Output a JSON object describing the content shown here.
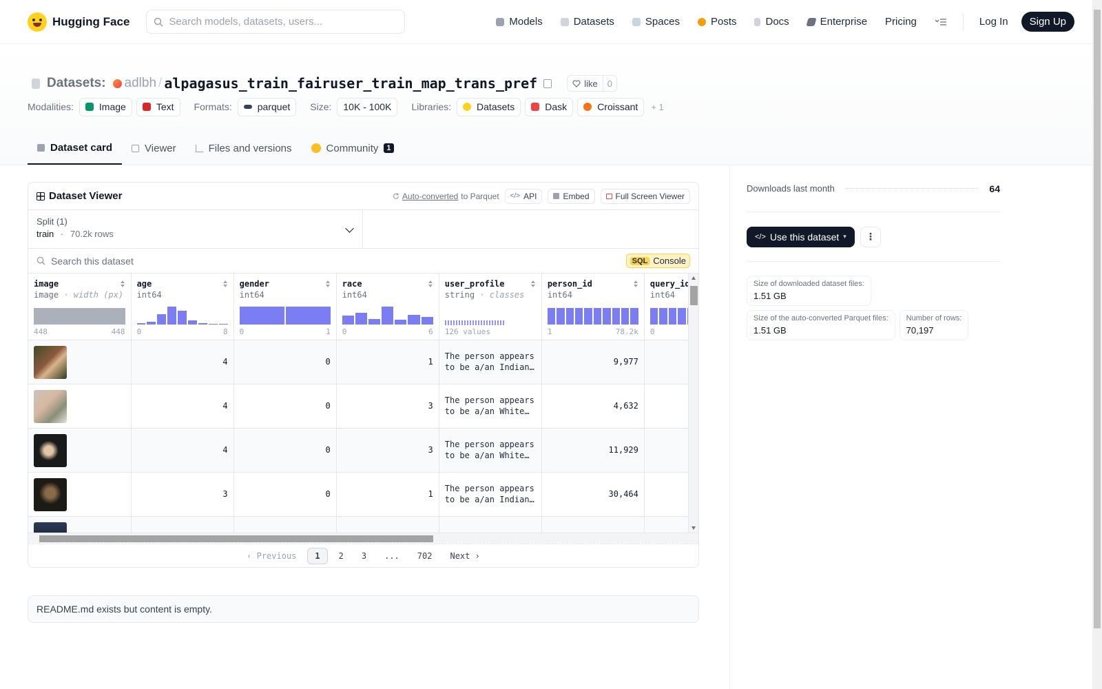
{
  "nav": {
    "brand": "Hugging Face",
    "search_placeholder": "Search models, datasets, users...",
    "links": {
      "models": "Models",
      "datasets": "Datasets",
      "spaces": "Spaces",
      "posts": "Posts",
      "docs": "Docs",
      "enterprise": "Enterprise",
      "pricing": "Pricing"
    },
    "login": "Log In",
    "signup": "Sign Up"
  },
  "header": {
    "prefix": "Datasets:",
    "owner": "adlbh",
    "separator": "/",
    "repo": "alpagasus_train_fairuser_train_map_trans_pref",
    "like_label": "like",
    "like_count": "0",
    "modalities_label": "Modalities:",
    "modalities": [
      "Image",
      "Text"
    ],
    "formats_label": "Formats:",
    "format": "parquet",
    "size_label": "Size:",
    "size": "10K - 100K",
    "libraries_label": "Libraries:",
    "libraries": [
      "Datasets",
      "Dask",
      "Croissant"
    ],
    "libraries_more": "+ 1"
  },
  "tabs": {
    "card": "Dataset card",
    "viewer": "Viewer",
    "files": "Files and versions",
    "community": "Community",
    "community_count": "1"
  },
  "viewer": {
    "title": "Dataset Viewer",
    "auto_converted": "Auto-converted",
    "to_parquet": "to Parquet",
    "api": "API",
    "embed": "Embed",
    "full_screen": "Full Screen Viewer",
    "split_label": "Split (1)",
    "split_name": "train",
    "split_dot": "·",
    "split_rows": "70.2k rows",
    "search_placeholder": "Search this dataset",
    "sql_badge": "SQL",
    "sql_label": "Console",
    "columns": [
      {
        "name": "image",
        "type": "image",
        "extra": "· width (px)",
        "min": "448",
        "max": "448"
      },
      {
        "name": "age",
        "type": "int64",
        "extra": "",
        "min": "0",
        "max": "8"
      },
      {
        "name": "gender",
        "type": "int64",
        "extra": "",
        "min": "0",
        "max": "1"
      },
      {
        "name": "race",
        "type": "int64",
        "extra": "",
        "min": "0",
        "max": "6"
      },
      {
        "name": "user_profile",
        "type": "string",
        "extra": "· classes",
        "min": "126 values",
        "max": ""
      },
      {
        "name": "person_id",
        "type": "int64",
        "extra": "",
        "min": "1",
        "max": "78.2k"
      },
      {
        "name": "query_id",
        "type": "int64",
        "extra": "",
        "min": "0",
        "max": ""
      }
    ],
    "rows": [
      {
        "age": "4",
        "gender": "0",
        "race": "1",
        "profile": "The person appears to be a/an Indian…",
        "person_id": "9,977",
        "query_id": ""
      },
      {
        "age": "4",
        "gender": "0",
        "race": "3",
        "profile": "The person appears to be a/an White…",
        "person_id": "4,632",
        "query_id": ""
      },
      {
        "age": "4",
        "gender": "0",
        "race": "3",
        "profile": "The person appears to be a/an White…",
        "person_id": "11,929",
        "query_id": ""
      },
      {
        "age": "3",
        "gender": "0",
        "race": "1",
        "profile": "The person appears to be a/an Indian…",
        "person_id": "30,464",
        "query_id": ""
      }
    ],
    "pagination": {
      "prev": "Previous",
      "pages": [
        "1",
        "2",
        "3",
        "...",
        "702"
      ],
      "next": "Next"
    }
  },
  "readme": "README.md exists but content is empty.",
  "sidebar": {
    "downloads_label": "Downloads last month",
    "downloads": "64",
    "use_dataset": "Use this dataset",
    "stats": [
      {
        "k": "Size of downloaded dataset files:",
        "v": "1.51 GB"
      },
      {
        "k": "Size of the auto-converted Parquet files:",
        "v": "1.51 GB"
      },
      {
        "k": "Number of rows:",
        "v": "70,197"
      }
    ]
  },
  "colors": {
    "accent": "#6366f1",
    "dark": "#111827",
    "brand_yellow": "#ffd21e"
  }
}
